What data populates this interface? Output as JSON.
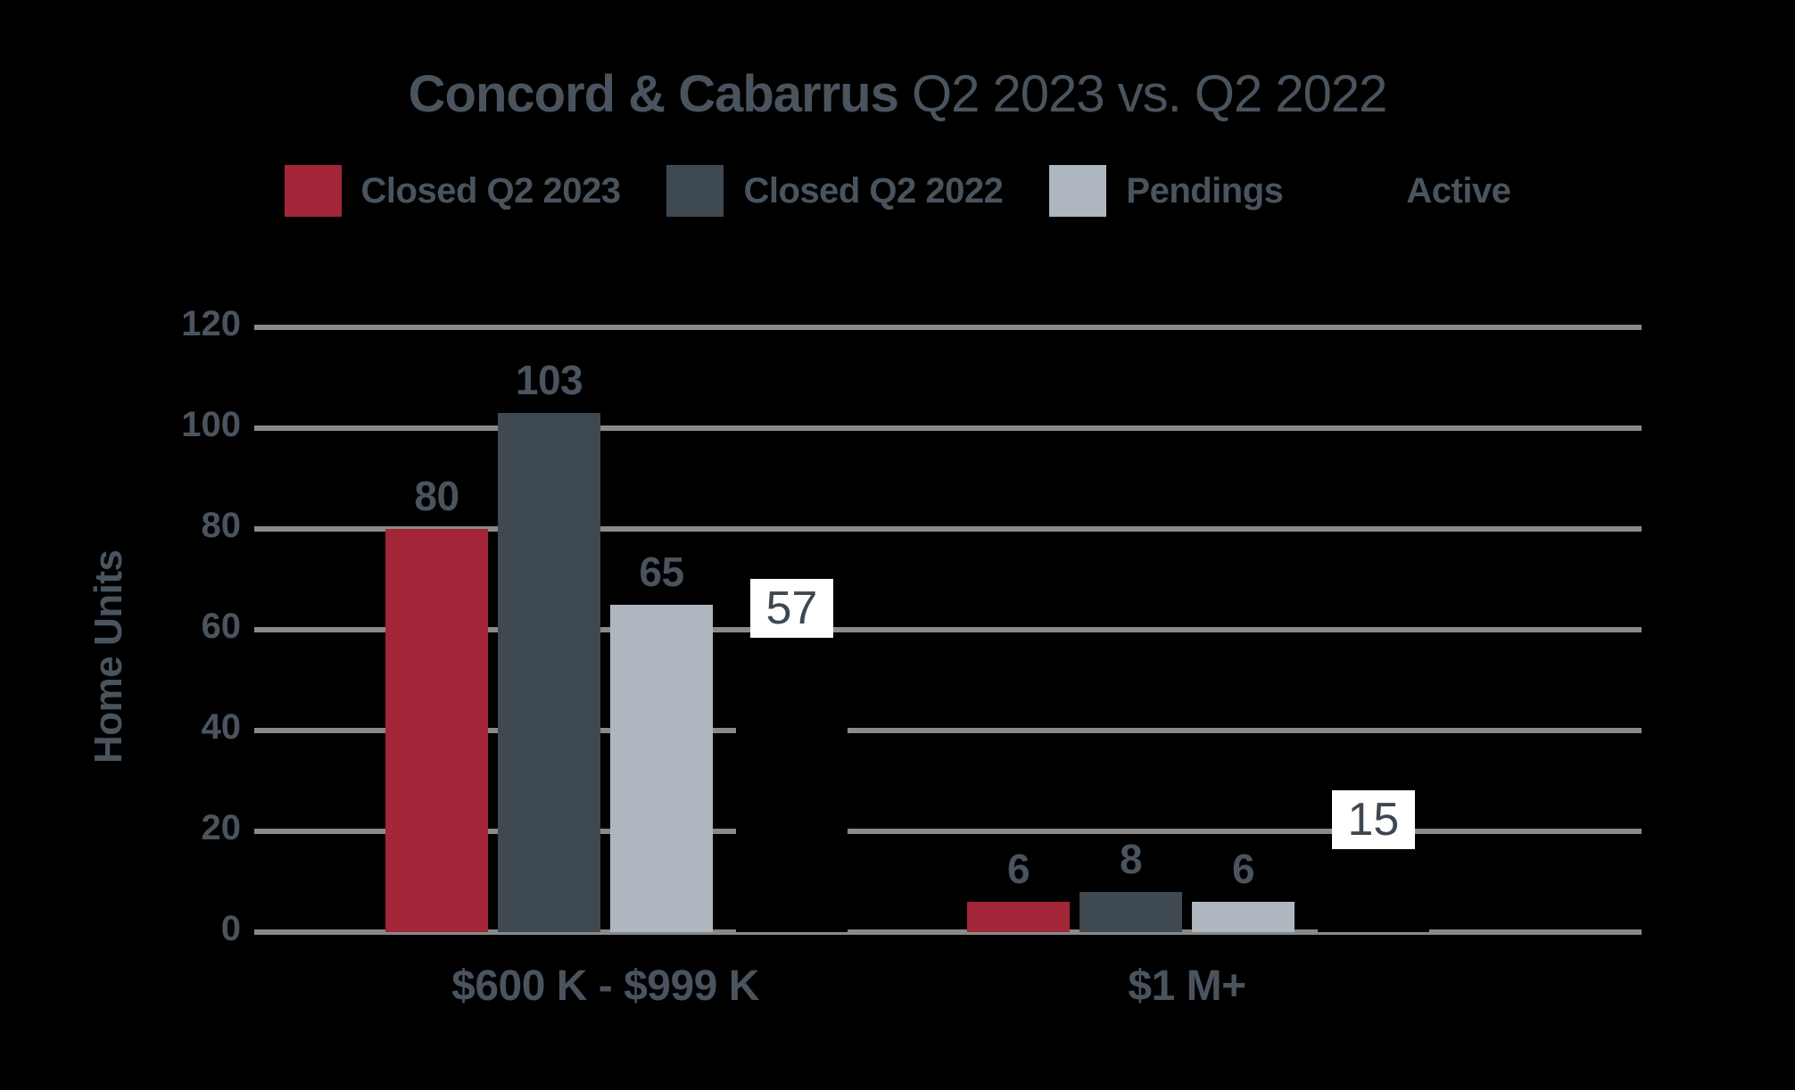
{
  "title": {
    "part1": "Concord & Cabarrus",
    "part2": " Q2 2023 vs. Q2 2022"
  },
  "legend": [
    {
      "label": "Closed Q2 2023",
      "color": "#a32638",
      "swatch_visible": true
    },
    {
      "label": "Closed Q2 2022",
      "color": "#3f4952",
      "swatch_visible": true
    },
    {
      "label": "Pendings",
      "color": "#aeb6bf",
      "swatch_visible": true
    },
    {
      "label": "Active",
      "color": "#000000",
      "swatch_visible": false
    }
  ],
  "chart_data": {
    "type": "bar",
    "title": "Concord & Cabarrus Q2 2023 vs. Q2 2022",
    "xlabel": "",
    "ylabel": "Home Units",
    "ylim": [
      0,
      120
    ],
    "yticks": [
      0,
      20,
      40,
      60,
      80,
      100,
      120
    ],
    "grid": true,
    "legend_position": "top",
    "categories": [
      "$600 K - $999 K",
      "$1 M+"
    ],
    "series": [
      {
        "name": "Closed Q2 2023",
        "color": "#a32638",
        "values": [
          80,
          6
        ],
        "label_style": "plain"
      },
      {
        "name": "Closed Q2 2022",
        "color": "#3f4952",
        "values": [
          103,
          8
        ],
        "label_style": "plain"
      },
      {
        "name": "Pendings",
        "color": "#aeb6bf",
        "values": [
          65,
          6
        ],
        "label_style": "plain"
      },
      {
        "name": "Active",
        "color": "#000000",
        "values": [
          57,
          15
        ],
        "label_style": "boxed"
      }
    ]
  },
  "colors": {
    "background": "#000000",
    "text_slate": "#4a545e",
    "gridline": "#8a8a8a",
    "value_box_bg": "#ffffff",
    "value_box_text": "#3f4751"
  }
}
